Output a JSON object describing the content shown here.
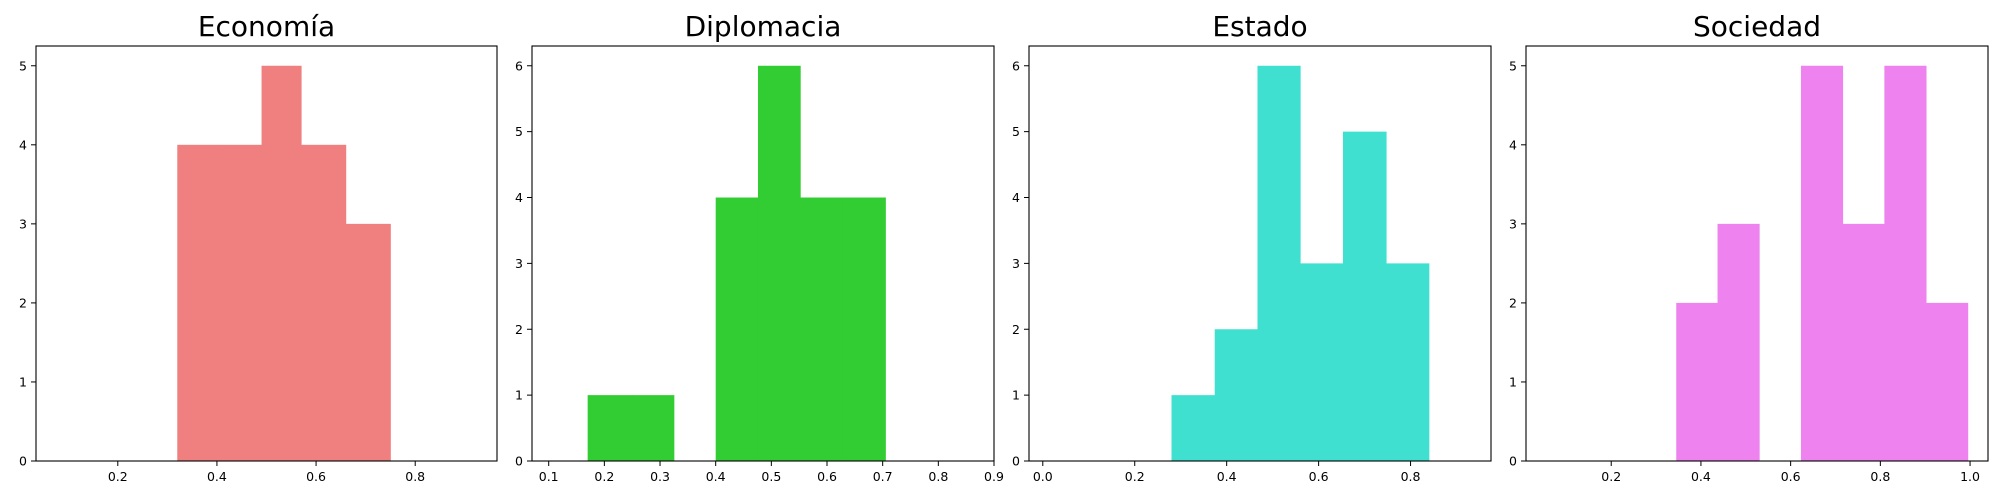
{
  "chart_data": [
    {
      "type": "histogram",
      "title": "Economía",
      "color": "#F08080",
      "bins": [
        {
          "x0": 0.32,
          "x1": 0.4,
          "count": 4
        },
        {
          "x0": 0.4,
          "x1": 0.49,
          "count": 4
        },
        {
          "x0": 0.49,
          "x1": 0.57,
          "count": 5
        },
        {
          "x0": 0.57,
          "x1": 0.66,
          "count": 4
        },
        {
          "x0": 0.66,
          "x1": 0.75,
          "count": 3
        }
      ],
      "xlim": [
        0.035,
        0.965
      ],
      "ylim": [
        0,
        5.25
      ],
      "xticks": [
        0.2,
        0.4,
        0.6,
        0.8
      ],
      "xtick_labels": [
        "0.2",
        "0.4",
        "0.6",
        "0.8"
      ],
      "yticks": [
        0,
        1,
        2,
        3,
        4,
        5
      ],
      "ytick_labels": [
        "0",
        "1",
        "2",
        "3",
        "4",
        "5"
      ],
      "grid": false,
      "legend": "none"
    },
    {
      "type": "histogram",
      "title": "Diplomacia",
      "color": "#32CD32",
      "bins": [
        {
          "x0": 0.17,
          "x1": 0.25,
          "count": 1
        },
        {
          "x0": 0.25,
          "x1": 0.325,
          "count": 1
        },
        {
          "x0": 0.4,
          "x1": 0.476,
          "count": 4
        },
        {
          "x0": 0.476,
          "x1": 0.552,
          "count": 6
        },
        {
          "x0": 0.552,
          "x1": 0.628,
          "count": 4
        },
        {
          "x0": 0.628,
          "x1": 0.705,
          "count": 4
        }
      ],
      "xlim": [
        0.07,
        0.9
      ],
      "ylim": [
        0,
        6.3
      ],
      "xticks": [
        0.1,
        0.2,
        0.3,
        0.4,
        0.5,
        0.6,
        0.7,
        0.8,
        0.9
      ],
      "xtick_labels": [
        "0.1",
        "0.2",
        "0.3",
        "0.4",
        "0.5",
        "0.6",
        "0.7",
        "0.8",
        "0.9"
      ],
      "yticks": [
        0,
        1,
        2,
        3,
        4,
        5,
        6
      ],
      "ytick_labels": [
        "0",
        "1",
        "2",
        "3",
        "4",
        "5",
        "6"
      ],
      "grid": false,
      "legend": "none"
    },
    {
      "type": "histogram",
      "title": "Estado",
      "color": "#40E0D0",
      "bins": [
        {
          "x0": 0.28,
          "x1": 0.374,
          "count": 1
        },
        {
          "x0": 0.374,
          "x1": 0.467,
          "count": 2
        },
        {
          "x0": 0.467,
          "x1": 0.56,
          "count": 6
        },
        {
          "x0": 0.56,
          "x1": 0.653,
          "count": 3
        },
        {
          "x0": 0.653,
          "x1": 0.747,
          "count": 5
        },
        {
          "x0": 0.747,
          "x1": 0.84,
          "count": 3
        }
      ],
      "xlim": [
        -0.03,
        0.975
      ],
      "ylim": [
        0,
        6.3
      ],
      "xticks": [
        0.0,
        0.2,
        0.4,
        0.6,
        0.8
      ],
      "xtick_labels": [
        "0.0",
        "0.2",
        "0.4",
        "0.6",
        "0.8"
      ],
      "yticks": [
        0,
        1,
        2,
        3,
        4,
        5,
        6
      ],
      "ytick_labels": [
        "0",
        "1",
        "2",
        "3",
        "4",
        "5",
        "6"
      ],
      "grid": false,
      "legend": "none"
    },
    {
      "type": "histogram",
      "title": "Sociedad",
      "color": "#EE82EE",
      "bins": [
        {
          "x0": 0.345,
          "x1": 0.437,
          "count": 2
        },
        {
          "x0": 0.437,
          "x1": 0.53,
          "count": 3
        },
        {
          "x0": 0.623,
          "x1": 0.716,
          "count": 5
        },
        {
          "x0": 0.716,
          "x1": 0.809,
          "count": 3
        },
        {
          "x0": 0.809,
          "x1": 0.902,
          "count": 5
        },
        {
          "x0": 0.902,
          "x1": 0.995,
          "count": 2
        }
      ],
      "xlim": [
        0.01,
        1.04
      ],
      "ylim": [
        0,
        5.25
      ],
      "xticks": [
        0.2,
        0.4,
        0.6,
        0.8,
        1.0
      ],
      "xtick_labels": [
        "0.2",
        "0.4",
        "0.6",
        "0.8",
        "1.0"
      ],
      "yticks": [
        0,
        1,
        2,
        3,
        4,
        5
      ],
      "ytick_labels": [
        "0",
        "1",
        "2",
        "3",
        "4",
        "5"
      ],
      "grid": false,
      "legend": "none"
    }
  ]
}
